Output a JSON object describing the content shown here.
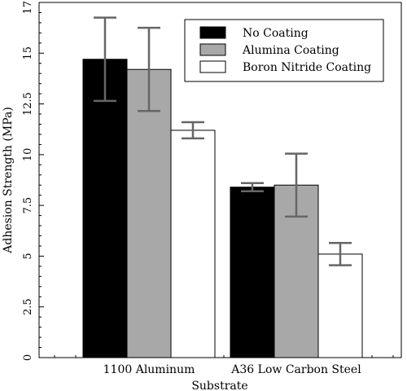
{
  "chart_data": {
    "type": "bar",
    "categories": [
      "1100 Aluminum",
      "A36 Low Carbon Steel"
    ],
    "series": [
      {
        "name": "No Coating",
        "color": "#000000",
        "values": [
          14.7,
          8.4
        ],
        "error": [
          2.05,
          0.2
        ]
      },
      {
        "name": "Alumina Coating",
        "color": "#a8a8a8",
        "values": [
          14.2,
          8.5
        ],
        "error": [
          2.05,
          1.55
        ]
      },
      {
        "name": "Boron Nitride Coating",
        "color": "#ffffff",
        "values": [
          11.2,
          5.1
        ],
        "error": [
          0.4,
          0.55
        ]
      }
    ],
    "xlabel": "Substrate",
    "ylabel": "Adhesion Strength (MPa)",
    "ylim": [
      0,
      17.5
    ],
    "yticks": [
      "0",
      "2.5",
      "5",
      "7.5",
      "10",
      "12.5",
      "15",
      "17.5"
    ],
    "legend_position": "top-right",
    "grid": false,
    "errorbar_color": "#666666"
  }
}
